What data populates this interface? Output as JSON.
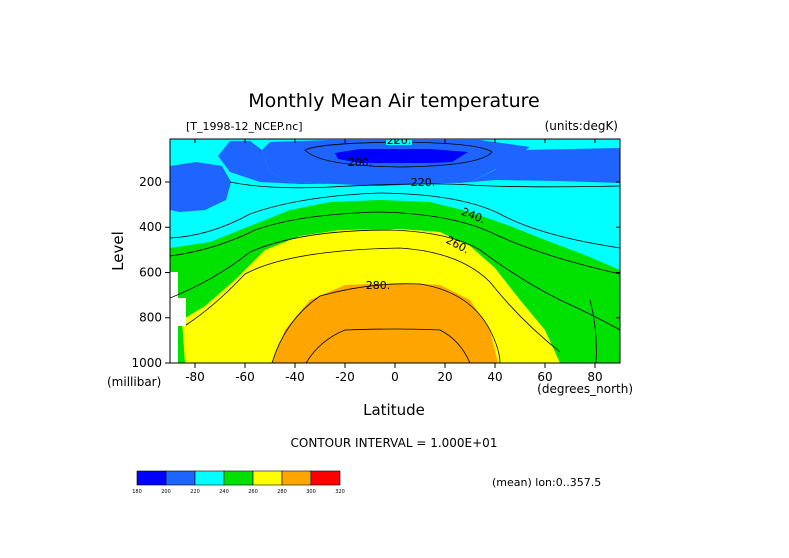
{
  "chart_data": {
    "type": "contour",
    "title": "Monthly Mean Air temperature",
    "source_file": "[T_1998-12_NCEP.nc]",
    "units_note": "(units:degK)",
    "xlabel": "Latitude",
    "x_units": "(degrees_north)",
    "ylabel": "Level",
    "y_units": "(millibar)",
    "x_ticks": [
      "-80",
      "-60",
      "-40",
      "-20",
      "0",
      "20",
      "40",
      "60",
      "80"
    ],
    "y_ticks": [
      "200",
      "400",
      "600",
      "800",
      "1000"
    ],
    "xlim": [
      -90,
      90
    ],
    "ylim": [
      1000,
      10
    ],
    "y_inverted": true,
    "contour_interval_text": "CONTOUR INTERVAL = 1.000E+01",
    "mean_note": "(mean) lon:0..357.5",
    "contour_labels": [
      "220.",
      "200.",
      "220.",
      "240.",
      "260.",
      "280."
    ],
    "levels": [
      {
        "min": 180,
        "max": 200,
        "color": "#0000ff"
      },
      {
        "min": 200,
        "max": 220,
        "color": "#1e64ff"
      },
      {
        "min": 220,
        "max": 240,
        "color": "#00ffff"
      },
      {
        "min": 240,
        "max": 260,
        "color": "#00e100"
      },
      {
        "min": 260,
        "max": 280,
        "color": "#ffff00"
      },
      {
        "min": 280,
        "max": 300,
        "color": "#ffa500"
      },
      {
        "min": 300,
        "max": 320,
        "color": "#ff0000"
      }
    ],
    "colorbar_labels": [
      "180",
      "200",
      "220",
      "240",
      "260",
      "280",
      "300",
      "320"
    ]
  }
}
